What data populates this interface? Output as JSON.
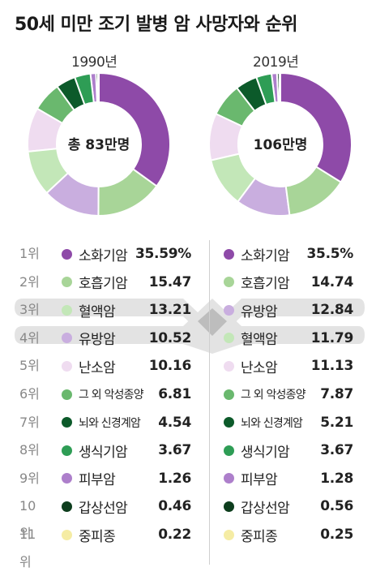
{
  "title": "50세 미만 조기 발병 암 사망자와 순위",
  "chart_data": [
    {
      "type": "pie",
      "year": "1990년",
      "center": "총 83만명",
      "colors": [
        "#8e4aa8",
        "#a8d598",
        "#c9aedf",
        "#c3e7b8",
        "#efdcf0",
        "#6ab86e",
        "#0c5a2a",
        "#2e9d55",
        "#ad7fcb",
        "#0d3d1d",
        "#f5eca4"
      ],
      "categories": [
        "소화기암",
        "호흡기암",
        "혈액암",
        "유방암",
        "난소암",
        "그 외 악성종양",
        "뇌와 신경계암",
        "생식기암",
        "피부암",
        "갑상선암",
        "중피종"
      ],
      "values": [
        35.59,
        15.47,
        13.21,
        10.52,
        10.16,
        6.81,
        4.54,
        3.67,
        1.26,
        0.46,
        0.22
      ]
    },
    {
      "type": "pie",
      "year": "2019년",
      "center": "106만명",
      "colors": [
        "#8e4aa8",
        "#a8d598",
        "#c9aedf",
        "#c3e7b8",
        "#efdcf0",
        "#6ab86e",
        "#0c5a2a",
        "#2e9d55",
        "#ad7fcb",
        "#0d3d1d",
        "#f5eca4"
      ],
      "categories": [
        "소화기암",
        "호흡기암",
        "유방암",
        "혈액암",
        "난소암",
        "그 외 악성종양",
        "뇌와 신경계암",
        "생식기암",
        "피부암",
        "갑상선암",
        "중피종"
      ],
      "values": [
        35.5,
        14.74,
        12.84,
        11.79,
        11.13,
        7.87,
        5.21,
        3.67,
        1.28,
        0.56,
        0.25
      ]
    }
  ],
  "ranks": [
    "1위",
    "2위",
    "3위",
    "4위",
    "5위",
    "6위",
    "7위",
    "8위",
    "9위",
    "10위",
    "11위"
  ],
  "table_left": [
    {
      "name": "소화기암",
      "value": "35.59%",
      "color": "#8e4aa8"
    },
    {
      "name": "호흡기암",
      "value": "15.47",
      "color": "#a8d598"
    },
    {
      "name": "혈액암",
      "value": "13.21",
      "color": "#c3e7b8"
    },
    {
      "name": "유방암",
      "value": "10.52",
      "color": "#c9aedf"
    },
    {
      "name": "난소암",
      "value": "10.16",
      "color": "#efdcf0"
    },
    {
      "name": "그 외 악성종양",
      "value": "6.81",
      "color": "#6ab86e"
    },
    {
      "name": "뇌와 신경계암",
      "value": "4.54",
      "color": "#0c5a2a"
    },
    {
      "name": "생식기암",
      "value": "3.67",
      "color": "#2e9d55"
    },
    {
      "name": "피부암",
      "value": "1.26",
      "color": "#ad7fcb"
    },
    {
      "name": "갑상선암",
      "value": "0.46",
      "color": "#0d3d1d"
    },
    {
      "name": "중피종",
      "value": "0.22",
      "color": "#f5eca4"
    }
  ],
  "table_right": [
    {
      "name": "소화기암",
      "value": "35.5%",
      "color": "#8e4aa8"
    },
    {
      "name": "호흡기암",
      "value": "14.74",
      "color": "#a8d598"
    },
    {
      "name": "유방암",
      "value": "12.84",
      "color": "#c9aedf"
    },
    {
      "name": "혈액암",
      "value": "11.79",
      "color": "#c3e7b8"
    },
    {
      "name": "난소암",
      "value": "11.13",
      "color": "#efdcf0"
    },
    {
      "name": "그 외 악성종양",
      "value": "7.87",
      "color": "#6ab86e"
    },
    {
      "name": "뇌와 신경계암",
      "value": "5.21",
      "color": "#0c5a2a"
    },
    {
      "name": "생식기암",
      "value": "3.67",
      "color": "#2e9d55"
    },
    {
      "name": "피부암",
      "value": "1.28",
      "color": "#ad7fcb"
    },
    {
      "name": "갑상선암",
      "value": "0.56",
      "color": "#0d3d1d"
    },
    {
      "name": "중피종",
      "value": "0.25",
      "color": "#f5eca4"
    }
  ]
}
